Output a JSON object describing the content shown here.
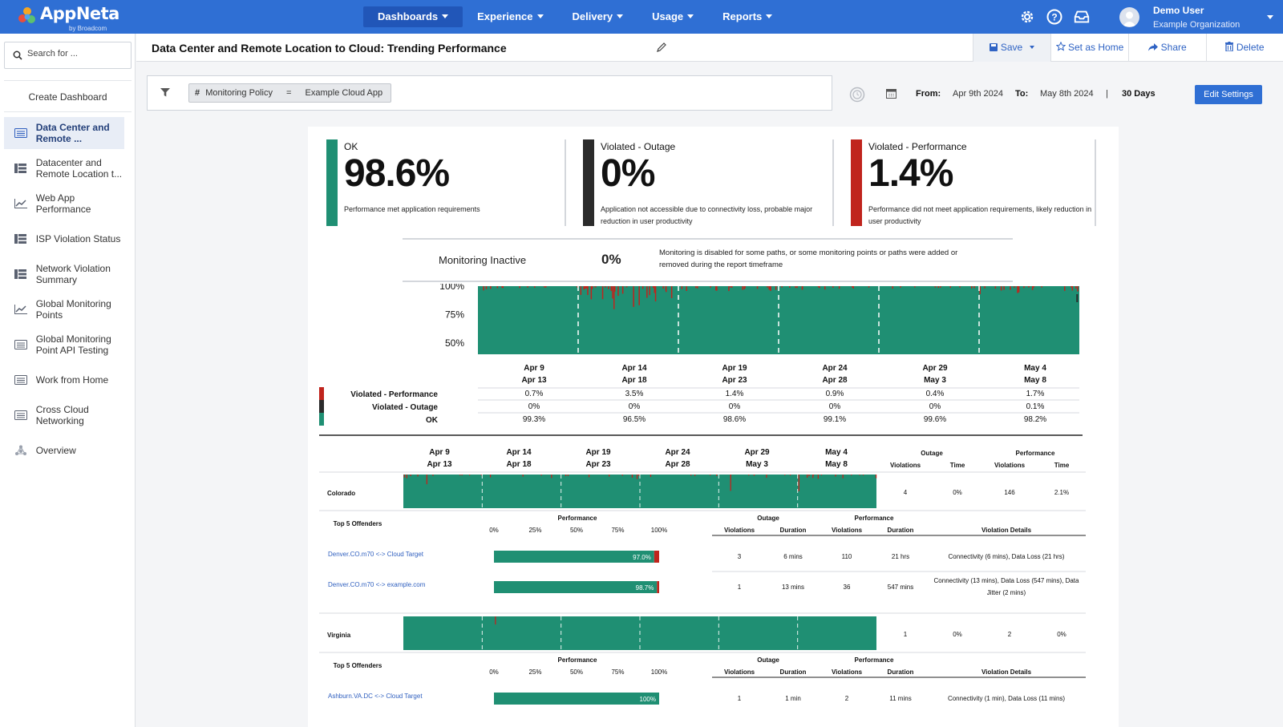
{
  "app": {
    "name": "AppNeta",
    "byline": "by Broadcom",
    "nav": [
      "Dashboards",
      "Experience",
      "Delivery",
      "Usage",
      "Reports"
    ],
    "user_name": "Demo User",
    "org_name": "Example Organization",
    "brand_color": "#2f6fd4"
  },
  "sidebar": {
    "search_placeholder": "Search for ...",
    "create_label": "Create Dashboard",
    "items": [
      {
        "label": "Data Center and Remote ...",
        "icon": "dashboard-list-icon"
      },
      {
        "label": "Datacenter and Remote Location t...",
        "icon": "table-icon"
      },
      {
        "label": "Web App Performance",
        "icon": "line-chart-icon"
      },
      {
        "label": "ISP Violation Status",
        "icon": "table-icon"
      },
      {
        "label": "Network Violation Summary",
        "icon": "table-icon"
      },
      {
        "label": "Global Monitoring Points",
        "icon": "line-chart-icon"
      },
      {
        "label": "Global Monitoring Point API Testing",
        "icon": "dashboard-list-icon"
      },
      {
        "label": "Work from Home",
        "icon": "dashboard-list-icon"
      },
      {
        "label": "Cross Cloud Networking",
        "icon": "dashboard-list-icon"
      },
      {
        "label": "Overview",
        "icon": "network-icon"
      }
    ]
  },
  "toolbar": {
    "title": "Data Center and Remote Location to Cloud: Trending Performance",
    "save_label": "Save",
    "set_home_label": "Set as Home",
    "share_label": "Share",
    "delete_label": "Delete"
  },
  "filter": {
    "field": "Monitoring Policy",
    "operator": "=",
    "value": "Example Cloud App",
    "from_label": "From:",
    "from_date": "Apr 9th 2024",
    "to_label": "To:",
    "to_date": "May 8th 2024",
    "separator": "|",
    "range": "30 Days",
    "edit_label": "Edit Settings"
  },
  "kpis": [
    {
      "label": "OK",
      "value": "98.6%",
      "desc": "Performance met application requirements",
      "color": "#1f8f73"
    },
    {
      "label": "Violated - Outage",
      "value": "0%",
      "desc": "Application not accessible due to connectivity loss, probable major reduction in user productivity",
      "color": "#2b2b2b"
    },
    {
      "label": "Violated - Performance",
      "value": "1.4%",
      "desc": "Performance did not meet application requirements, likely reduction in user productivity",
      "color": "#c0241d"
    }
  ],
  "inactive": {
    "label": "Monitoring Inactive",
    "value": "0%",
    "desc": "Monitoring is disabled for some paths, or some monitoring points or paths were added or removed during the report timeframe"
  },
  "chart_data": {
    "type": "area",
    "yticks": [
      "100%",
      "75%",
      "50%"
    ],
    "ylim": [
      40,
      100
    ],
    "periods": [
      [
        "Apr 9",
        "Apr 13"
      ],
      [
        "Apr 14",
        "Apr 18"
      ],
      [
        "Apr 19",
        "Apr 23"
      ],
      [
        "Apr 24",
        "Apr 28"
      ],
      [
        "Apr 29",
        "May 3"
      ],
      [
        "May 4",
        "May 8"
      ]
    ],
    "series": [
      {
        "name": "Violated - Performance",
        "color": "#c0241d",
        "values": [
          "0.7%",
          "3.5%",
          "1.4%",
          "0.9%",
          "0.4%",
          "1.7%"
        ]
      },
      {
        "name": "Violated - Outage",
        "color": "#2b2b2b",
        "values": [
          "0%",
          "0%",
          "0%",
          "0%",
          "0%",
          "0.1%"
        ]
      },
      {
        "name": "OK",
        "color": "#1f8f73",
        "values": [
          "99.3%",
          "96.5%",
          "98.6%",
          "99.1%",
          "99.6%",
          "98.2%"
        ]
      }
    ]
  },
  "regions_header": {
    "outage": "Outage",
    "performance": "Performance",
    "violations": "Violations",
    "time": "Time"
  },
  "offenders_header": {
    "title": "Top 5 Offenders",
    "performance": "Performance",
    "ticks": [
      "0%",
      "25%",
      "50%",
      "75%",
      "100%"
    ],
    "outage": "Outage",
    "violations": "Violations",
    "duration": "Duration",
    "details": "Violation Details"
  },
  "regions": [
    {
      "name": "Colorado",
      "outage_violations": "4",
      "outage_time": "0%",
      "perf_violations": "146",
      "perf_time": "2.1%",
      "offenders": [
        {
          "path": "Denver.CO.m70 <-> Cloud Target",
          "pct": 97.0,
          "label": "97.0%",
          "ov": "3",
          "od": "6 mins",
          "pv": "110",
          "pd": "21 hrs",
          "details": "Connectivity (6 mins), Data Loss (21 hrs)"
        },
        {
          "path": "Denver.CO.m70 <-> example.com",
          "pct": 98.7,
          "label": "98.7%",
          "ov": "1",
          "od": "13 mins",
          "pv": "36",
          "pd": "547 mins",
          "details": "Connectivity (13 mins), Data Loss (547 mins), Data Jitter (2 mins)"
        }
      ]
    },
    {
      "name": "Virginia",
      "outage_violations": "1",
      "outage_time": "0%",
      "perf_violations": "2",
      "perf_time": "0%",
      "offenders": [
        {
          "path": "Ashburn.VA.DC <-> Cloud Target",
          "pct": 100,
          "label": "100%",
          "ov": "1",
          "od": "1 min",
          "pv": "2",
          "pd": "11 mins",
          "details": "Connectivity (1 min), Data Loss (11 mins)"
        }
      ]
    }
  ]
}
